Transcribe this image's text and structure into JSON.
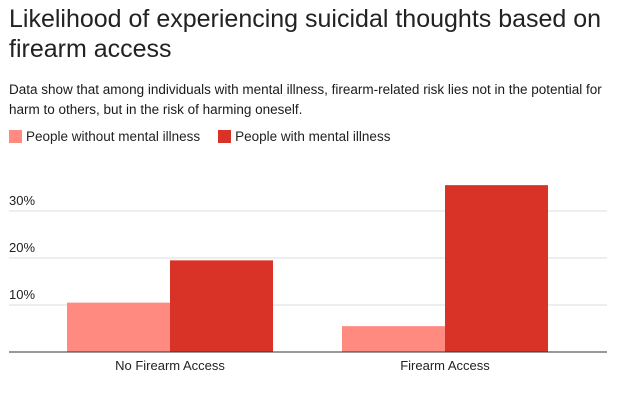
{
  "colors": {
    "without": "#ff8a80",
    "with": "#d93328",
    "grid": "#dddddd",
    "axis": "#333333",
    "text": "#222222"
  },
  "chart_data": {
    "type": "bar",
    "title": "Likelihood of experiencing suicidal thoughts based on firearm access",
    "subtitle": "Data show that among individuals with mental illness, firearm-related risk lies not in the potential for harm to others, but in the risk of harming oneself.",
    "categories": [
      "No Firearm Access",
      "Firearm Access"
    ],
    "series": [
      {
        "name": "People without mental illness",
        "values": [
          10.5,
          5.5
        ]
      },
      {
        "name": "People with mental illness",
        "values": [
          19.5,
          35.5
        ]
      }
    ],
    "ylim": [
      0,
      37
    ],
    "yticks": [
      10,
      20,
      30
    ],
    "ytick_labels": [
      "10%",
      "20%",
      "30%"
    ],
    "xlabel": "",
    "ylabel": "",
    "grid": true,
    "legend": "top-left"
  }
}
